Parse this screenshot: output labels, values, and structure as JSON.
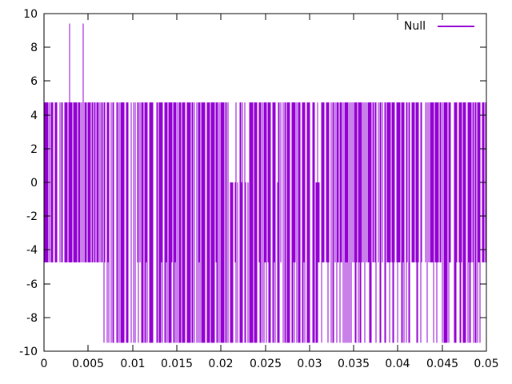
{
  "chart_data": {
    "type": "line",
    "title": "",
    "xlabel": "",
    "ylabel": "",
    "xlim": [
      0,
      0.05
    ],
    "ylim": [
      -10,
      10
    ],
    "grid": false,
    "background_color": "#ffffff",
    "axis_color": "#000000",
    "x_ticks": [
      0,
      0.005,
      0.01,
      0.015,
      0.02,
      0.025,
      0.03,
      0.035,
      0.04,
      0.045,
      0.05
    ],
    "x_tick_labels": [
      "0",
      "0.005",
      "0.01",
      "0.015",
      "0.02",
      "0.025",
      "0.03",
      "0.035",
      "0.04",
      "0.045",
      "0.05"
    ],
    "y_ticks": [
      -10,
      -8,
      -6,
      -4,
      -2,
      0,
      2,
      4,
      6,
      8,
      10
    ],
    "y_tick_labels": [
      "-10",
      "-8",
      "-6",
      "-4",
      "-2",
      "0",
      "2",
      "4",
      "6",
      "8",
      "10"
    ],
    "legend": {
      "label": "Null",
      "position": "top-right-inside",
      "line_color": "#9400d3"
    },
    "series": [
      {
        "name": "Null",
        "color": "#9400d3",
        "description": "Dense pseudo-random square-wave noise alternating between discrete quantization levels, rendered as near-solid vertical band with thin white gaps.",
        "levels": {
          "top": 4.75,
          "spike": 9.4,
          "zero": 0,
          "mid_low": -4.75,
          "low": -9.5
        },
        "spike_x": [
          0.0029,
          0.00442
        ],
        "zero_top_regions": [
          [
            0.0209,
            0.0216
          ],
          [
            0.0219,
            0.0224
          ],
          [
            0.0227,
            0.0231
          ],
          [
            0.0261,
            0.0265
          ],
          [
            0.0307,
            0.0313
          ]
        ],
        "low_regions": [
          {
            "from": 0.0066,
            "to": 0.0313,
            "p_low": 0.85
          },
          {
            "from": 0.0313,
            "to": 0.05,
            "p_low": 0.5
          }
        ],
        "gap_probability": 0.22,
        "samples": 460,
        "seed": 911
      }
    ]
  }
}
